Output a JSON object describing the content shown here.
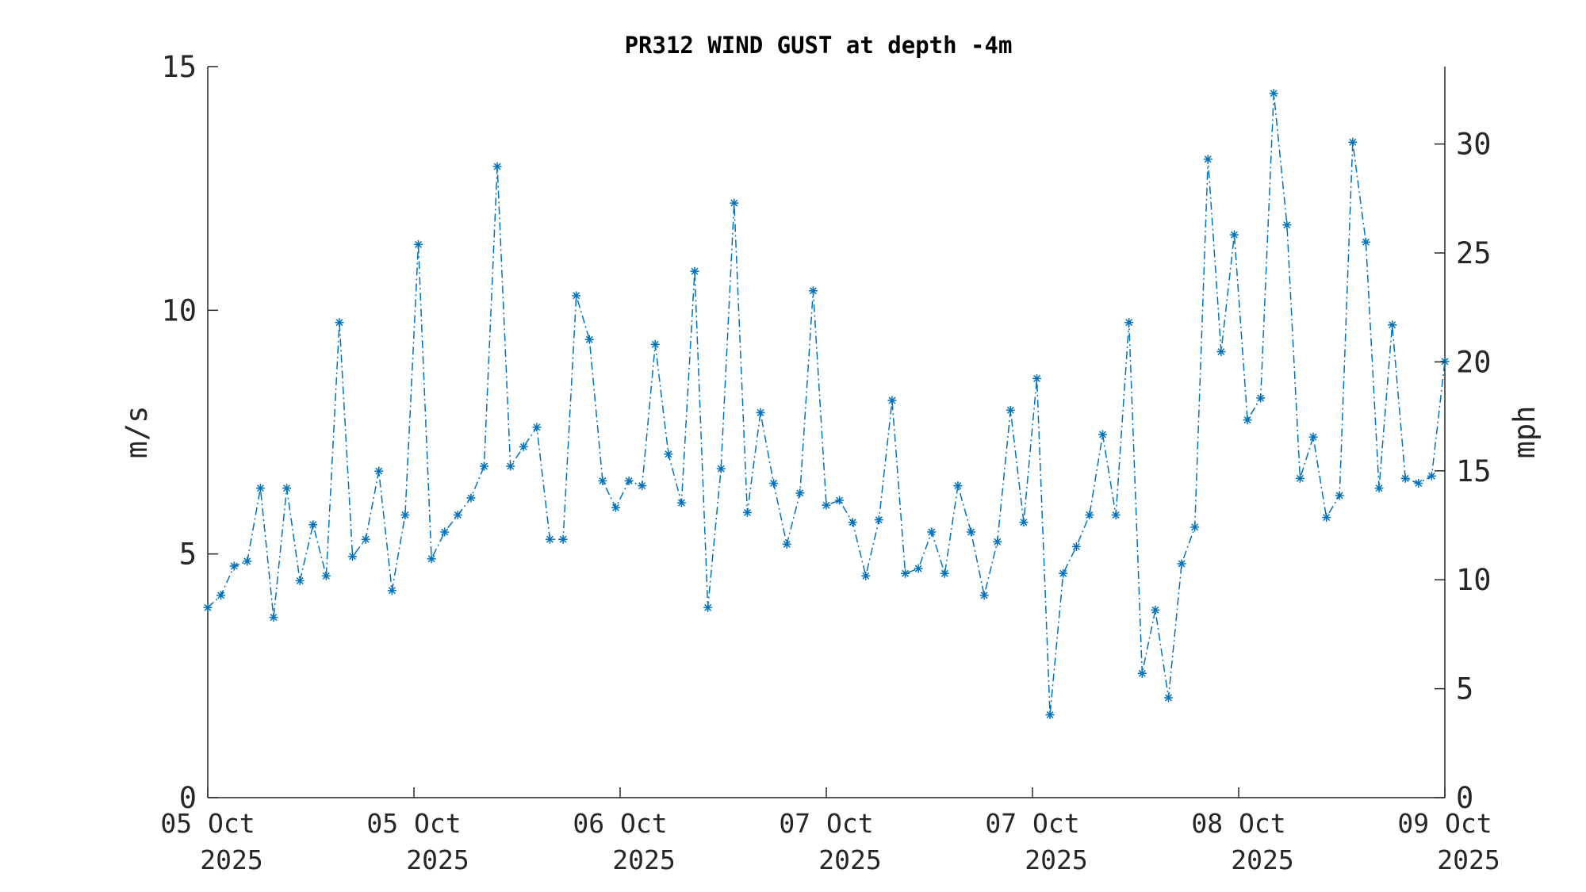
{
  "chart_data": {
    "type": "line",
    "title": "PR312 WIND GUST at depth -4m",
    "ylabel": "m/s",
    "ylabel_right": "mph",
    "ylim": [
      0,
      15
    ],
    "yticks": [
      0,
      5,
      10,
      15
    ],
    "ylim_right": [
      0,
      33.554
    ],
    "yticks_right": [
      0,
      5,
      10,
      15,
      20,
      25,
      30
    ],
    "xlim": [
      "2025-10-05 00:00",
      "2025-10-09 00:00"
    ],
    "xticks": [
      {
        "line1": "05 Oct",
        "line2": "2025"
      },
      {
        "line1": "05 Oct",
        "line2": "2025"
      },
      {
        "line1": "06 Oct",
        "line2": "2025"
      },
      {
        "line1": "07 Oct",
        "line2": "2025"
      },
      {
        "line1": "07 Oct",
        "line2": "2025"
      },
      {
        "line1": "08 Oct",
        "line2": "2025"
      },
      {
        "line1": "09 Oct",
        "line2": "2025"
      }
    ],
    "grid": false,
    "line_style": "dash-dot",
    "marker": "asterisk",
    "color": "#0072BD",
    "series": [
      {
        "values": [
          3.9,
          4.15,
          4.75,
          4.85,
          6.35,
          3.7,
          6.35,
          4.45,
          5.6,
          4.55,
          9.75,
          4.95,
          5.3,
          6.7,
          4.25,
          5.8,
          11.35,
          4.9,
          5.45,
          5.8,
          6.15,
          6.8,
          12.95,
          6.8,
          7.2,
          7.6,
          5.3,
          5.3,
          10.3,
          9.4,
          6.5,
          5.95,
          6.5,
          6.4,
          9.3,
          7.05,
          6.05,
          10.8,
          3.9,
          6.75,
          12.2,
          5.85,
          7.9,
          6.45,
          5.2,
          6.25,
          10.4,
          6.0,
          6.1,
          5.65,
          4.55,
          5.7,
          8.15,
          4.6,
          4.7,
          5.45,
          4.6,
          6.4,
          5.45,
          4.15,
          5.25,
          7.95,
          5.65,
          8.6,
          1.7,
          4.6,
          5.15,
          5.8,
          7.45,
          5.8,
          9.75,
          2.55,
          3.85,
          2.05,
          4.8,
          5.55,
          13.1,
          9.15,
          11.55,
          7.75,
          8.2,
          14.45,
          11.75,
          6.55,
          7.4,
          5.75,
          6.2,
          13.45,
          11.4,
          6.35,
          9.7,
          6.55,
          6.45,
          6.6,
          8.95
        ]
      }
    ]
  }
}
